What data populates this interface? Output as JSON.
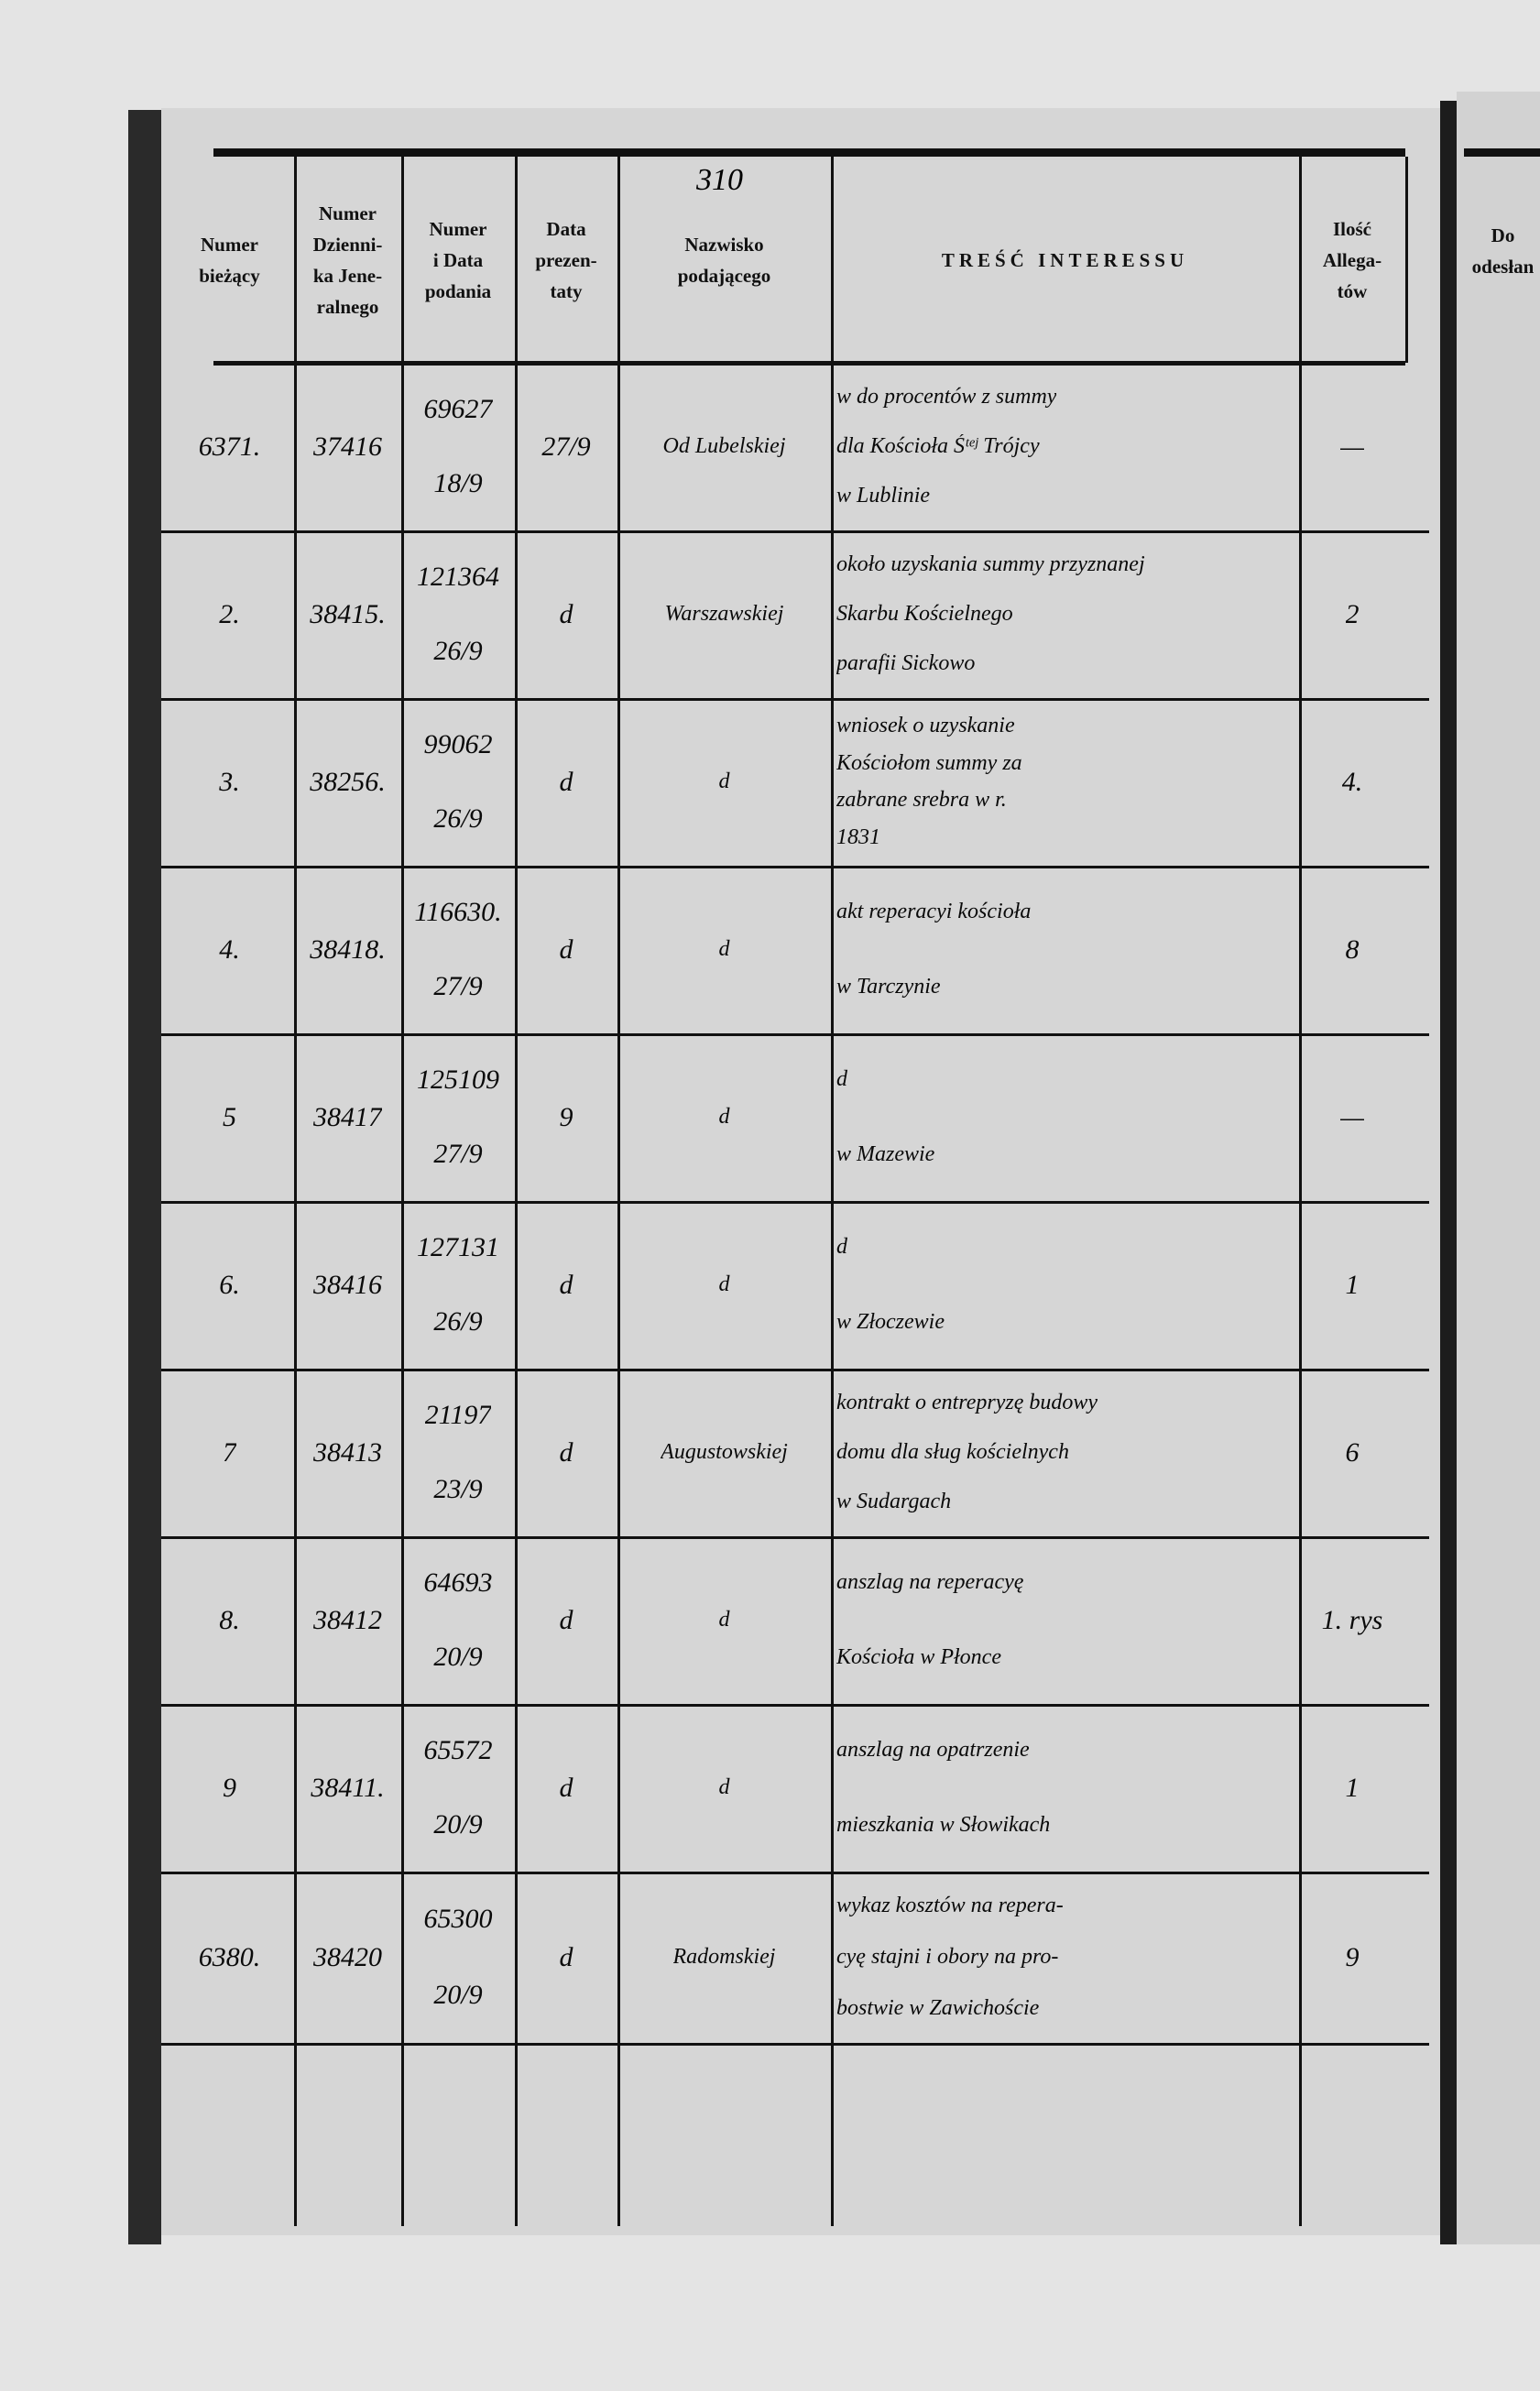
{
  "page_number": "310",
  "header": {
    "columns": [
      [
        "Numer",
        "bieżący"
      ],
      [
        "Numer",
        "Dzienni-",
        "ka Jene-",
        "ralnego"
      ],
      [
        "Numer",
        "i Data",
        "podania"
      ],
      [
        "Data",
        "prezen-",
        "taty"
      ],
      [
        "Nazwisko",
        "podającego"
      ],
      [
        "TREŚĆ INTERESSU"
      ],
      [
        "Ilość",
        "Allega-",
        "tów"
      ]
    ]
  },
  "table": {
    "rows": [
      [
        [
          "6371."
        ],
        [
          "37416"
        ],
        [
          "69627",
          "18/9"
        ],
        [
          "27/9"
        ],
        [
          "Od Lubelskiej"
        ],
        [
          "w do procentów z summy",
          "dla Kościoła Śᵗᵉʲ Trójcy",
          "w Lublinie"
        ],
        [
          "—"
        ]
      ],
      [
        [
          "2."
        ],
        [
          "38415."
        ],
        [
          "121364",
          "26/9"
        ],
        [
          "d"
        ],
        [
          "Warszawskiej"
        ],
        [
          "około uzyskania summy przyznanej",
          "Skarbu Kościelnego",
          "parafii Sickowo"
        ],
        [
          "2"
        ]
      ],
      [
        [
          "3."
        ],
        [
          "38256."
        ],
        [
          "99062",
          "26/9"
        ],
        [
          "d"
        ],
        [
          "d"
        ],
        [
          "wniosek o uzyskanie",
          "Kościołom summy za",
          "zabrane srebra w r.",
          "1831"
        ],
        [
          "4."
        ]
      ],
      [
        [
          "4."
        ],
        [
          "38418."
        ],
        [
          "116630.",
          "27/9"
        ],
        [
          "d"
        ],
        [
          "d"
        ],
        [
          "akt reperacyi kościoła",
          "w Tarczynie"
        ],
        [
          "8"
        ]
      ],
      [
        [
          "5"
        ],
        [
          "38417"
        ],
        [
          "125109",
          "27/9"
        ],
        [
          "9"
        ],
        [
          "d"
        ],
        [
          "d",
          "w Mazewie"
        ],
        [
          "—"
        ]
      ],
      [
        [
          "6."
        ],
        [
          "38416"
        ],
        [
          "127131",
          "26/9"
        ],
        [
          "d"
        ],
        [
          "d"
        ],
        [
          "d",
          "w Złoczewie"
        ],
        [
          "1"
        ]
      ],
      [
        [
          "7"
        ],
        [
          "38413"
        ],
        [
          "21197",
          "23/9"
        ],
        [
          "d"
        ],
        [
          "Augustowskiej"
        ],
        [
          "kontrakt o entrepryzę budowy",
          "domu dla sług kościelnych",
          "w Sudargach"
        ],
        [
          "6"
        ]
      ],
      [
        [
          "8."
        ],
        [
          "38412"
        ],
        [
          "64693",
          "20/9"
        ],
        [
          "d"
        ],
        [
          "d"
        ],
        [
          "anszlag na reperacyę",
          "Kościoła w Płonce"
        ],
        [
          "1. rys"
        ]
      ],
      [
        [
          "9"
        ],
        [
          "38411."
        ],
        [
          "65572",
          "20/9"
        ],
        [
          "d"
        ],
        [
          "d"
        ],
        [
          "anszlag na opatrzenie",
          "mieszkania w Słowikach"
        ],
        [
          "1"
        ]
      ],
      [
        [
          "6380."
        ],
        [
          "38420"
        ],
        [
          "65300",
          "20/9"
        ],
        [
          "d"
        ],
        [
          "Radomskiej"
        ],
        [
          "wykaz kosztów na repera-",
          "cyę stajni i obory na pro-",
          "bostwie w Zawichoście"
        ],
        [
          "9"
        ]
      ]
    ]
  },
  "right_page": {
    "header": [
      "Do",
      "odesłan"
    ]
  }
}
